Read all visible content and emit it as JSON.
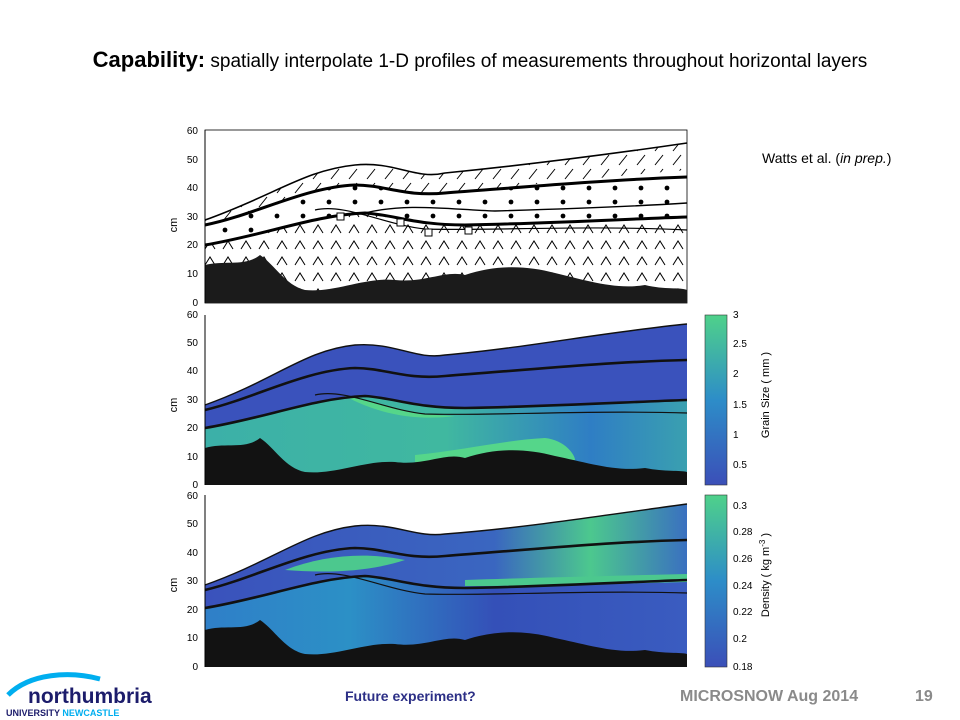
{
  "title": {
    "bold": "Capability:",
    "text": " spatially interpolate 1-D profiles of measurements throughout horizontal layers"
  },
  "citation": {
    "authors": "Watts et al. (",
    "note": "in prep.",
    "close": ")"
  },
  "panels": {
    "y_label": "cm",
    "y_ticks": [
      "0",
      "10",
      "20",
      "30",
      "40",
      "50",
      "60"
    ],
    "grain": {
      "cbar_label": "Grain Size ( mm )",
      "cbar_ticks": [
        "0.5",
        "1",
        "1.5",
        "2",
        "2.5",
        "3"
      ]
    },
    "density": {
      "cbar_label_a": "Density ( kg m",
      "cbar_label_sup": "-3",
      "cbar_label_b": " )",
      "cbar_ticks": [
        "0.18",
        "0.2",
        "0.22",
        "0.24",
        "0.26",
        "0.28",
        "0.3"
      ]
    }
  },
  "footer": {
    "question": "Future experiment?",
    "conference": "MICROSNOW Aug 2014",
    "page": "19"
  },
  "logo": {
    "line1": "northumbria",
    "line2a": "UNIVERSITY ",
    "line2b": "NEWCASTLE"
  },
  "colors": {
    "footer_blue": "#2c2f86",
    "footer_gray": "#8a8a8a",
    "low": "#3b4fb8",
    "high": "#4fd18a"
  }
}
